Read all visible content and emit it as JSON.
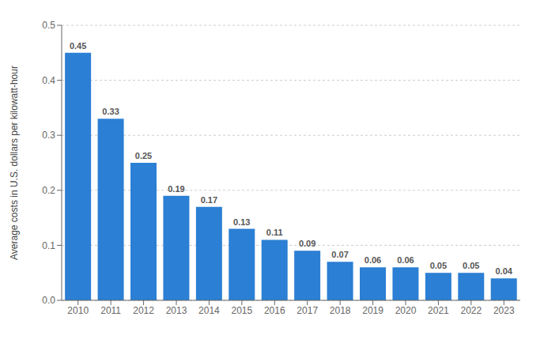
{
  "chart_data": {
    "type": "bar",
    "ylabel": "Average costs in U.S. dollars per kilowatt-hour",
    "categories": [
      "2010",
      "2011",
      "2012",
      "2013",
      "2014",
      "2015",
      "2016",
      "2017",
      "2018",
      "2019",
      "2020",
      "2021",
      "2022",
      "2023"
    ],
    "values": [
      0.45,
      0.33,
      0.25,
      0.19,
      0.17,
      0.13,
      0.11,
      0.09,
      0.07,
      0.06,
      0.06,
      0.05,
      0.05,
      0.04
    ],
    "color": "#2B7FD4",
    "ylim": [
      0,
      0.5
    ],
    "yticks": [
      {
        "value": 0,
        "label": "0.0"
      },
      0.1,
      0.2,
      0.3,
      0.4,
      0.5
    ],
    "grid": true,
    "data_labels": true
  }
}
